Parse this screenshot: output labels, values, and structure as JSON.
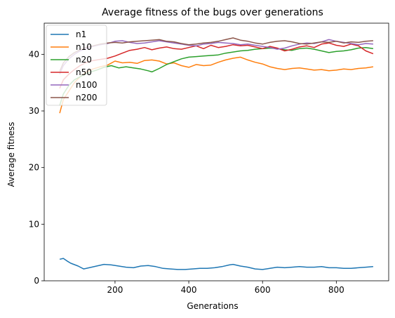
{
  "chart_data": {
    "type": "line",
    "title": "Average fitness of the bugs over generations",
    "xlabel": "Generations",
    "ylabel": "Average fitness",
    "xlim": [
      8,
      942
    ],
    "ylim": [
      0,
      45.5
    ],
    "xticks": [
      200,
      400,
      600,
      800
    ],
    "yticks": [
      0,
      10,
      20,
      30,
      40
    ],
    "legend_position": "top-left",
    "grid": false,
    "series": [
      {
        "name": "n1",
        "color": "#1f77b4",
        "x": [
          50,
          60,
          70,
          80,
          100,
          115,
          130,
          150,
          170,
          190,
          210,
          230,
          250,
          270,
          290,
          310,
          330,
          350,
          370,
          390,
          410,
          430,
          450,
          470,
          490,
          510,
          520,
          540,
          560,
          580,
          600,
          620,
          640,
          660,
          680,
          700,
          720,
          740,
          760,
          780,
          800,
          820,
          840,
          860,
          880,
          900
        ],
        "y": [
          3.8,
          3.95,
          3.5,
          3.1,
          2.6,
          2.1,
          2.3,
          2.6,
          2.9,
          2.8,
          2.6,
          2.4,
          2.3,
          2.6,
          2.7,
          2.5,
          2.2,
          2.1,
          2.0,
          2.0,
          2.1,
          2.2,
          2.2,
          2.3,
          2.5,
          2.8,
          2.9,
          2.6,
          2.4,
          2.1,
          2.0,
          2.2,
          2.4,
          2.3,
          2.4,
          2.5,
          2.4,
          2.4,
          2.5,
          2.3,
          2.3,
          2.2,
          2.2,
          2.3,
          2.4,
          2.5
        ]
      },
      {
        "name": "n10",
        "color": "#ff7f0e",
        "x": [
          50,
          60,
          75,
          90,
          105,
          120,
          140,
          160,
          180,
          200,
          220,
          240,
          260,
          280,
          300,
          320,
          340,
          360,
          380,
          400,
          420,
          440,
          460,
          480,
          500,
          520,
          540,
          560,
          580,
          600,
          620,
          640,
          660,
          680,
          700,
          720,
          740,
          760,
          780,
          800,
          820,
          840,
          860,
          880,
          900
        ],
        "y": [
          29.6,
          32.0,
          33.5,
          35.0,
          36.0,
          36.8,
          37.4,
          37.8,
          38.1,
          38.8,
          38.5,
          38.6,
          38.4,
          38.9,
          39.0,
          38.8,
          38.3,
          38.5,
          38.0,
          37.7,
          38.2,
          38.0,
          38.1,
          38.6,
          39.0,
          39.3,
          39.5,
          39.0,
          38.6,
          38.3,
          37.8,
          37.5,
          37.3,
          37.5,
          37.6,
          37.4,
          37.2,
          37.3,
          37.1,
          37.2,
          37.4,
          37.3,
          37.5,
          37.6,
          37.8
        ]
      },
      {
        "name": "n20",
        "color": "#2ca02c",
        "x": [
          50,
          60,
          75,
          90,
          110,
          130,
          150,
          170,
          190,
          210,
          230,
          250,
          270,
          290,
          300,
          320,
          340,
          360,
          380,
          400,
          420,
          440,
          460,
          480,
          500,
          520,
          540,
          560,
          580,
          600,
          620,
          640,
          660,
          680,
          700,
          720,
          740,
          760,
          780,
          800,
          820,
          840,
          860,
          880,
          900
        ],
        "y": [
          31.0,
          33.0,
          34.5,
          35.5,
          36.2,
          36.8,
          37.2,
          37.7,
          38.0,
          37.6,
          37.8,
          37.6,
          37.4,
          37.1,
          36.9,
          37.5,
          38.2,
          38.7,
          39.2,
          39.5,
          39.6,
          39.7,
          39.8,
          39.9,
          40.2,
          40.4,
          40.6,
          40.7,
          40.9,
          41.0,
          41.1,
          41.0,
          40.8,
          40.7,
          41.0,
          41.1,
          40.9,
          40.6,
          40.3,
          40.5,
          40.6,
          40.8,
          41.1,
          41.2,
          41.0
        ]
      },
      {
        "name": "n50",
        "color": "#d62728",
        "x": [
          50,
          60,
          75,
          90,
          105,
          120,
          140,
          160,
          180,
          200,
          220,
          240,
          260,
          280,
          300,
          320,
          340,
          360,
          380,
          400,
          420,
          440,
          460,
          480,
          500,
          520,
          540,
          560,
          580,
          600,
          620,
          640,
          660,
          680,
          700,
          720,
          740,
          760,
          780,
          800,
          820,
          840,
          860,
          880,
          900
        ],
        "y": [
          34.0,
          35.5,
          36.5,
          37.3,
          38.0,
          38.5,
          38.9,
          39.1,
          39.3,
          39.7,
          40.2,
          40.7,
          40.9,
          41.2,
          40.8,
          41.1,
          41.3,
          41.0,
          40.9,
          41.2,
          41.5,
          41.0,
          41.6,
          41.2,
          41.4,
          41.7,
          41.5,
          41.6,
          41.3,
          41.0,
          41.4,
          41.1,
          40.6,
          40.9,
          41.3,
          41.5,
          41.2,
          41.8,
          42.0,
          41.6,
          41.4,
          41.8,
          41.5,
          40.6,
          40.1
        ]
      },
      {
        "name": "n100",
        "color": "#9467bd",
        "x": [
          50,
          60,
          75,
          90,
          105,
          120,
          140,
          160,
          180,
          200,
          220,
          240,
          260,
          280,
          300,
          320,
          340,
          360,
          380,
          400,
          420,
          440,
          460,
          480,
          500,
          520,
          540,
          560,
          580,
          600,
          620,
          640,
          660,
          680,
          700,
          720,
          740,
          760,
          780,
          800,
          820,
          840,
          860,
          880,
          900
        ],
        "y": [
          36.5,
          38.0,
          39.2,
          40.0,
          40.6,
          41.0,
          41.4,
          41.7,
          41.9,
          42.3,
          42.4,
          42.1,
          41.9,
          42.0,
          42.2,
          42.4,
          42.2,
          42.0,
          41.8,
          41.6,
          41.5,
          41.8,
          41.9,
          42.1,
          42.0,
          41.9,
          41.7,
          41.8,
          41.6,
          41.4,
          41.2,
          40.9,
          41.1,
          41.5,
          41.8,
          42.0,
          41.9,
          42.2,
          42.6,
          42.3,
          42.1,
          41.9,
          41.7,
          41.9,
          41.8
        ]
      },
      {
        "name": "n200",
        "color": "#8c564b",
        "x": [
          50,
          60,
          75,
          90,
          105,
          120,
          140,
          160,
          180,
          200,
          220,
          240,
          260,
          280,
          300,
          320,
          340,
          360,
          380,
          400,
          420,
          440,
          460,
          480,
          500,
          520,
          540,
          560,
          580,
          600,
          620,
          640,
          660,
          680,
          700,
          720,
          740,
          760,
          780,
          800,
          820,
          840,
          860,
          880,
          900
        ],
        "y": [
          37.0,
          38.5,
          39.6,
          40.3,
          40.8,
          41.2,
          41.5,
          41.8,
          42.0,
          42.1,
          42.0,
          42.2,
          42.3,
          42.4,
          42.5,
          42.6,
          42.3,
          42.2,
          41.9,
          41.7,
          41.8,
          42.0,
          42.1,
          42.3,
          42.6,
          42.9,
          42.5,
          42.3,
          42.0,
          41.8,
          42.1,
          42.3,
          42.4,
          42.2,
          41.9,
          41.8,
          42.0,
          42.2,
          42.1,
          42.3,
          42.0,
          42.2,
          42.1,
          42.3,
          42.4
        ]
      }
    ]
  }
}
